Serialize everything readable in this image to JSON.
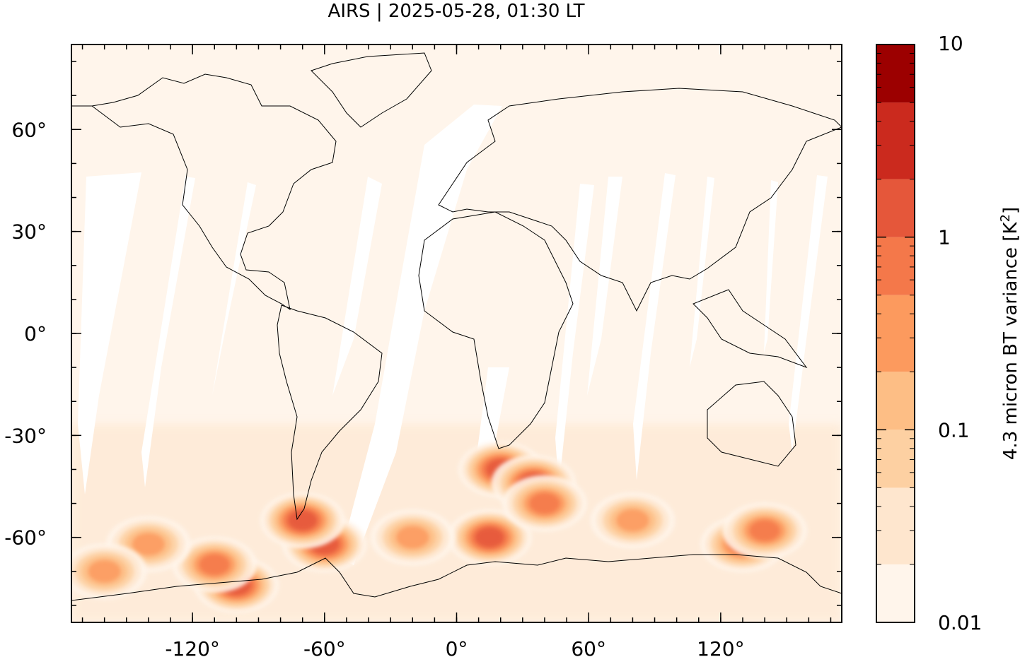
{
  "chart_data": {
    "type": "heatmap",
    "title": "AIRS | 2025-05-28, 01:30 LT",
    "projection": "equirectangular world map with coastlines",
    "x_axis": {
      "range": [
        -175,
        175
      ],
      "ticks": [
        -120,
        -60,
        0,
        60,
        120
      ],
      "tick_labels": [
        "-120°",
        "-60°",
        "0°",
        "60°",
        "120°"
      ]
    },
    "y_axis": {
      "range": [
        -85,
        85
      ],
      "ticks": [
        60,
        30,
        0,
        -30,
        -60
      ],
      "tick_labels": [
        "60°",
        "30°",
        "0°",
        "-30°",
        "-60°"
      ]
    },
    "colorbar": {
      "label": "4.3 micron BT variance [K²]",
      "label_main": "4.3 micron BT variance [K",
      "label_sup": "2",
      "label_end": "]",
      "scale": "log",
      "range": [
        0.01,
        10
      ],
      "tick_labels": [
        "10",
        "1",
        "0.1",
        "0.01"
      ],
      "ticks": [
        10,
        1,
        0.1,
        0.01
      ],
      "levels": [
        {
          "from": 0.01,
          "to": 0.02,
          "color": "#fff5eb"
        },
        {
          "from": 0.02,
          "to": 0.05,
          "color": "#fee6ce"
        },
        {
          "from": 0.05,
          "to": 0.1,
          "color": "#fdd0a2"
        },
        {
          "from": 0.1,
          "to": 0.2,
          "color": "#fdbe85"
        },
        {
          "from": 0.2,
          "to": 0.5,
          "color": "#fc9a5e"
        },
        {
          "from": 0.5,
          "to": 1,
          "color": "#f4784a"
        },
        {
          "from": 1,
          "to": 2,
          "color": "#e5573a"
        },
        {
          "from": 2,
          "to": 5,
          "color": "#cb2a1e"
        },
        {
          "from": 5,
          "to": 10,
          "color": "#9c0000"
        }
      ]
    },
    "hotspots": [
      {
        "lon": -60,
        "lat": -62,
        "value": 1.5
      },
      {
        "lon": -70,
        "lat": -55,
        "value": 1.2
      },
      {
        "lon": -100,
        "lat": -74,
        "value": 1.0
      },
      {
        "lon": -110,
        "lat": -68,
        "value": 0.6
      },
      {
        "lon": -140,
        "lat": -62,
        "value": 0.3
      },
      {
        "lon": -160,
        "lat": -70,
        "value": 0.3
      },
      {
        "lon": 20,
        "lat": -40,
        "value": 1.2
      },
      {
        "lon": 35,
        "lat": -44,
        "value": 1.2
      },
      {
        "lon": 15,
        "lat": -60,
        "value": 1.0
      },
      {
        "lon": 40,
        "lat": -50,
        "value": 0.5
      },
      {
        "lon": 130,
        "lat": -62,
        "value": 0.6
      },
      {
        "lon": 140,
        "lat": -58,
        "value": 0.5
      },
      {
        "lon": -20,
        "lat": -60,
        "value": 0.3
      },
      {
        "lon": 80,
        "lat": -55,
        "value": 0.2
      }
    ],
    "swath_gaps_note": "white diagonal gaps between satellite orbits"
  }
}
